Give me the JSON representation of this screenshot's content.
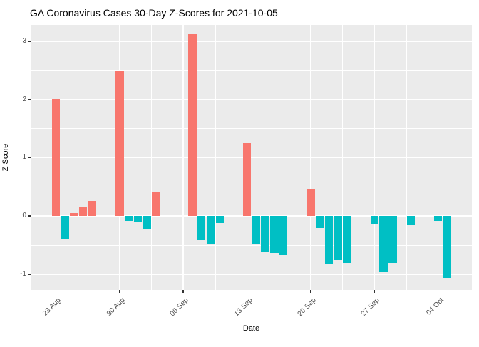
{
  "chart_data": {
    "type": "bar",
    "title": "GA Coronavirus Cases 30-Day Z-Scores for 2021-10-05",
    "xlabel": "Date",
    "ylabel": "Z Score",
    "legend": "none",
    "grid": "on",
    "panel_bg": "#EBEBEB",
    "grid_color": "#FFFFFF",
    "axis_text_color": "#4D4D4D",
    "tick_color": "#333333",
    "bar_colors": {
      "positive": "#F8766D",
      "negative": "#00BFC4"
    },
    "x_axis": {
      "tick_labels": [
        "23 Aug",
        "30 Aug",
        "06 Sep",
        "13 Sep",
        "20 Sep",
        "27 Sep",
        "04 Oct"
      ],
      "tick_days": [
        0,
        7,
        14,
        21,
        28,
        35,
        42
      ],
      "minor_tick_days": [
        3.5,
        10.5,
        17.5,
        24.5,
        31.5,
        38.5,
        45.5
      ],
      "range_days": [
        -2.77,
        45.7
      ]
    },
    "y_axis": {
      "tick_labels": [
        "-1",
        "0",
        "1",
        "2",
        "3"
      ],
      "ticks": [
        -1,
        0,
        1,
        2,
        3
      ],
      "minor_ticks": [
        -0.5,
        0.5,
        1.5,
        2.5
      ],
      "range": [
        -1.27,
        3.28
      ]
    },
    "bar_width_days": 0.9,
    "bars": [
      {
        "date": "2021-08-23",
        "day": 0,
        "value": 2.01
      },
      {
        "date": "2021-08-24",
        "day": 1,
        "value": -0.4
      },
      {
        "date": "2021-08-25",
        "day": 2,
        "value": 0.05
      },
      {
        "date": "2021-08-26",
        "day": 3,
        "value": 0.16
      },
      {
        "date": "2021-08-27",
        "day": 4,
        "value": 0.26
      },
      {
        "date": "2021-08-30",
        "day": 7,
        "value": 2.5
      },
      {
        "date": "2021-08-31",
        "day": 8,
        "value": -0.08
      },
      {
        "date": "2021-09-01",
        "day": 9,
        "value": -0.1
      },
      {
        "date": "2021-09-02",
        "day": 10,
        "value": -0.23
      },
      {
        "date": "2021-09-03",
        "day": 11,
        "value": 0.4
      },
      {
        "date": "2021-09-07",
        "day": 15,
        "value": 3.12
      },
      {
        "date": "2021-09-08",
        "day": 16,
        "value": -0.41
      },
      {
        "date": "2021-09-09",
        "day": 17,
        "value": -0.47
      },
      {
        "date": "2021-09-10",
        "day": 18,
        "value": -0.12
      },
      {
        "date": "2021-09-13",
        "day": 21,
        "value": 1.26
      },
      {
        "date": "2021-09-14",
        "day": 22,
        "value": -0.47
      },
      {
        "date": "2021-09-15",
        "day": 23,
        "value": -0.62
      },
      {
        "date": "2021-09-16",
        "day": 24,
        "value": -0.64
      },
      {
        "date": "2021-09-17",
        "day": 25,
        "value": -0.67
      },
      {
        "date": "2021-09-20",
        "day": 28,
        "value": 0.47
      },
      {
        "date": "2021-09-21",
        "day": 29,
        "value": -0.21
      },
      {
        "date": "2021-09-22",
        "day": 30,
        "value": -0.83
      },
      {
        "date": "2021-09-23",
        "day": 31,
        "value": -0.76
      },
      {
        "date": "2021-09-24",
        "day": 32,
        "value": -0.81
      },
      {
        "date": "2021-09-27",
        "day": 35,
        "value": -0.13
      },
      {
        "date": "2021-09-28",
        "day": 36,
        "value": -0.97
      },
      {
        "date": "2021-09-29",
        "day": 37,
        "value": -0.8
      },
      {
        "date": "2021-10-01",
        "day": 39,
        "value": -0.16
      },
      {
        "date": "2021-10-04",
        "day": 42,
        "value": -0.08
      },
      {
        "date": "2021-10-05",
        "day": 43,
        "value": -1.06
      }
    ]
  }
}
